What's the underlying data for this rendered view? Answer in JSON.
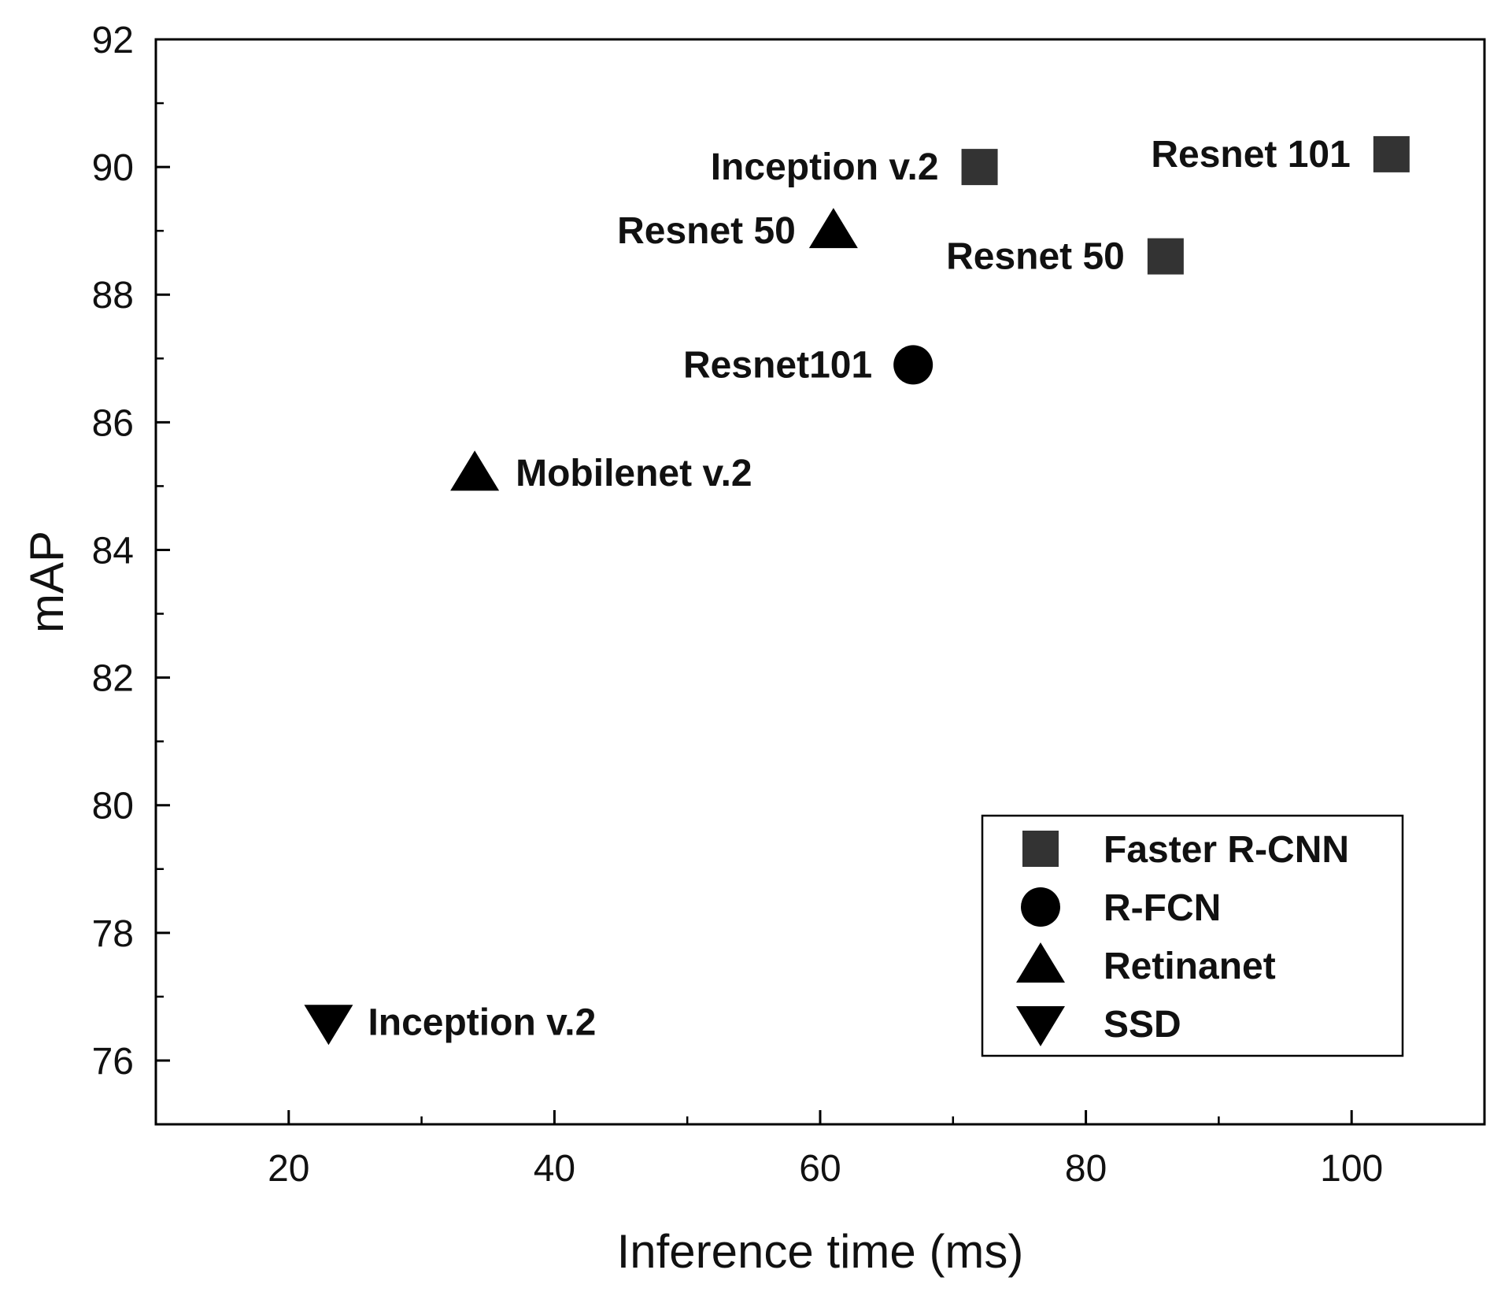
{
  "chart_data": {
    "type": "scatter",
    "xlabel": "Inference time (ms)",
    "ylabel": "mAP",
    "xlim": [
      10,
      110
    ],
    "ylim": [
      75,
      92
    ],
    "x_major_ticks": [
      20,
      40,
      60,
      80,
      100
    ],
    "x_minor_ticks": [
      30,
      50,
      70,
      90
    ],
    "y_major_ticks": [
      76,
      78,
      80,
      82,
      84,
      86,
      88,
      90,
      92
    ],
    "y_minor_ticks": [
      77,
      79,
      81,
      83,
      85,
      87,
      89,
      91
    ],
    "grid": false,
    "legend_position": "bottom-right",
    "series": [
      {
        "name": "Faster R-CNN",
        "marker": "square",
        "color": "#333333",
        "points": [
          {
            "x": 72,
            "y": 90.0,
            "label": "Inception v.2"
          },
          {
            "x": 103,
            "y": 90.2,
            "label": "Resnet 101"
          },
          {
            "x": 86,
            "y": 88.6,
            "label": "Resnet 50"
          }
        ]
      },
      {
        "name": "R-FCN",
        "marker": "circle",
        "color": "#000000",
        "points": [
          {
            "x": 67,
            "y": 86.9,
            "label": "Resnet101"
          }
        ]
      },
      {
        "name": "Retinanet",
        "marker": "triangle-up",
        "color": "#000000",
        "points": [
          {
            "x": 61,
            "y": 89.0,
            "label": "Resnet 50"
          },
          {
            "x": 34,
            "y": 85.2,
            "label": "Mobilenet v.2"
          }
        ]
      },
      {
        "name": "SSD",
        "marker": "triangle-down",
        "color": "#000000",
        "points": [
          {
            "x": 23,
            "y": 76.6,
            "label": "Inception v.2"
          }
        ]
      }
    ]
  }
}
